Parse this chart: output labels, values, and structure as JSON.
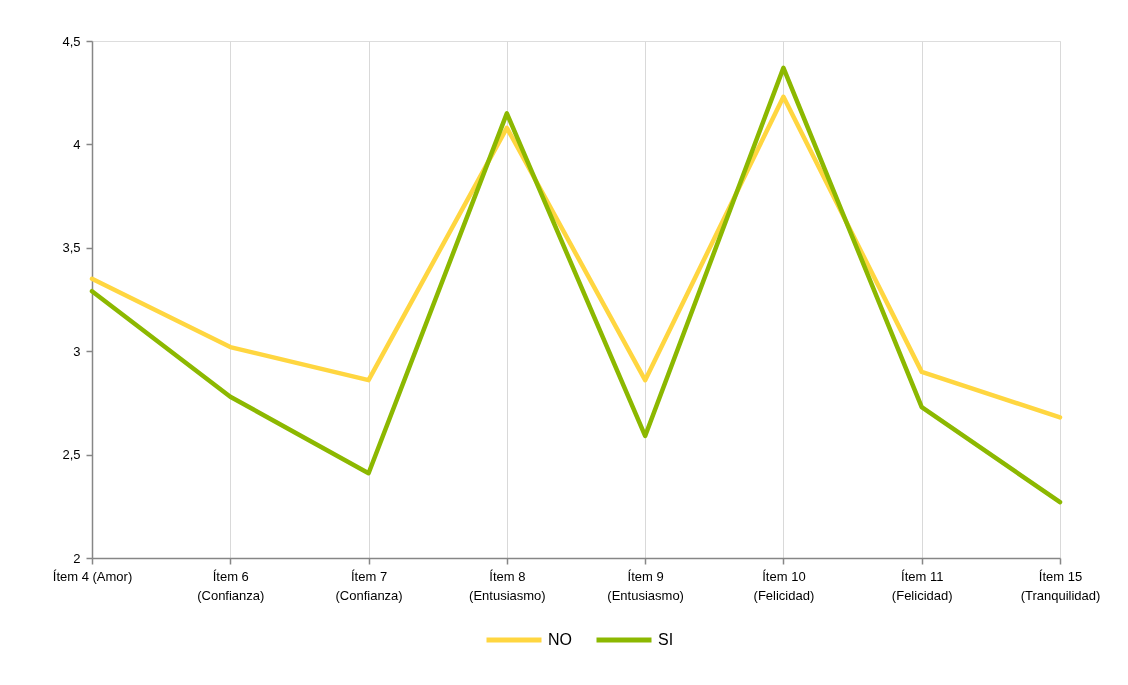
{
  "chart_data": {
    "type": "line",
    "categories": [
      "Ítem 4 (Amor)",
      "Ítem 6 (Confianza)",
      "Ítem 7 (Confianza)",
      "Ítem 8 (Entusiasmo)",
      "Ítem 9 (Entusiasmo)",
      "Ítem 10 (Felicidad)",
      "Ítem 11 (Felicidad)",
      "Ítem 15 (Tranquilidad)"
    ],
    "series": [
      {
        "name": "NO",
        "color": "#ffd640",
        "values": [
          3.35,
          3.02,
          2.86,
          4.08,
          2.86,
          4.23,
          2.9,
          2.68
        ]
      },
      {
        "name": "SI",
        "color": "#8cb800",
        "values": [
          3.29,
          2.78,
          2.41,
          4.15,
          2.59,
          4.37,
          2.73,
          2.27
        ]
      }
    ],
    "ylim": [
      2,
      4.5
    ],
    "yticks": [
      2,
      {
        "value": 2.5,
        "label": "2,5"
      },
      3,
      {
        "value": 3.5,
        "label": "3,5"
      },
      4,
      {
        "value": 4.5,
        "label": "4,5"
      }
    ],
    "grid": "x",
    "legend": "bottom"
  }
}
